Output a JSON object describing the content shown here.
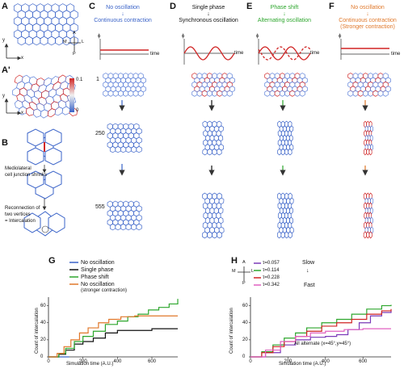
{
  "panels": {
    "a": "A",
    "a2": "A'",
    "b": "B",
    "c": "C",
    "d": "D",
    "e": "E",
    "f": "F",
    "g": "G",
    "h": "H"
  },
  "axes": {
    "a": "A",
    "p": "P",
    "m": "M",
    "l": "L",
    "x": "x",
    "y": "y"
  },
  "a2_scale": {
    "max": "0.1",
    "min": "0"
  },
  "panel_b": {
    "caption1": "Mediolateral",
    "caption2": "cell junction shrinks",
    "caption3": "Reconnection of",
    "caption4": "two vertices",
    "caption5": "= Intercalation"
  },
  "columns": {
    "c": {
      "line1": "No oscillation",
      "line2": "Continuous contraction",
      "color": "#3a63c8"
    },
    "d": {
      "line1": "Single phase",
      "line2": "Synchronous oscillation",
      "color": "#111111"
    },
    "e": {
      "line1": "Phase shift",
      "line2": "Alternating oscillation",
      "color": "#2da62d"
    },
    "f": {
      "line1": "No oscillation",
      "line2": "Continuous contraction",
      "line3": "(Stronger contraction)",
      "color": "#e0782a"
    }
  },
  "signal": {
    "phi": "ϕ",
    "time": "time"
  },
  "rows": {
    "r1": "1",
    "r2": "250",
    "r3": "555"
  },
  "graph_g": {
    "legend": [
      "No oscillation",
      "Single phase",
      "Phase shift",
      "No oscillation",
      "(stronger contraction)"
    ],
    "ylabel": "Count of intercalation",
    "xlabel": "Simulation time (A.U.)",
    "yticks": [
      "0",
      "20",
      "40",
      "60"
    ],
    "xticks": [
      "0",
      "200",
      "400",
      "600"
    ]
  },
  "graph_h": {
    "legend": [
      "τ=0.057",
      "τ=0.114",
      "τ=0.228",
      "τ=0.342"
    ],
    "slow": "Slow",
    "fast": "Fast",
    "note": "All alternate (x=45°,y=45°)",
    "ylabel": "Count of intercalation",
    "xlabel": "Simulation time (A.U.)",
    "yticks": [
      "0",
      "20",
      "40",
      "60"
    ],
    "xticks": [
      "0",
      "200",
      "400",
      "600"
    ]
  },
  "chart_data": [
    {
      "type": "line",
      "xlim": [
        0,
        750
      ],
      "ylim": [
        0,
        70
      ],
      "series": [
        {
          "name": "No oscillation",
          "color": "#3a63c8",
          "points": [
            [
              0,
              0
            ],
            [
              60,
              0
            ],
            [
              120,
              0
            ]
          ]
        },
        {
          "name": "Single phase",
          "color": "#111111",
          "points": [
            [
              0,
              0
            ],
            [
              60,
              3
            ],
            [
              100,
              8
            ],
            [
              150,
              15
            ],
            [
              200,
              18
            ],
            [
              260,
              22
            ],
            [
              330,
              28
            ],
            [
              400,
              31
            ],
            [
              500,
              31
            ],
            [
              600,
              33
            ],
            [
              750,
              33
            ]
          ]
        },
        {
          "name": "Phase shift",
          "color": "#2da62d",
          "points": [
            [
              0,
              0
            ],
            [
              60,
              4
            ],
            [
              100,
              10
            ],
            [
              150,
              18
            ],
            [
              200,
              24
            ],
            [
              260,
              30
            ],
            [
              330,
              38
            ],
            [
              400,
              42
            ],
            [
              460,
              47
            ],
            [
              520,
              50
            ],
            [
              580,
              55
            ],
            [
              640,
              58
            ],
            [
              700,
              62
            ],
            [
              750,
              68
            ]
          ]
        },
        {
          "name": "No oscillation (stronger contraction)",
          "color": "#e0782a",
          "points": [
            [
              0,
              0
            ],
            [
              50,
              4
            ],
            [
              90,
              12
            ],
            [
              130,
              20
            ],
            [
              180,
              28
            ],
            [
              230,
              34
            ],
            [
              290,
              40
            ],
            [
              350,
              44
            ],
            [
              420,
              47
            ],
            [
              500,
              48
            ],
            [
              750,
              48
            ]
          ]
        }
      ]
    },
    {
      "type": "line",
      "xlim": [
        0,
        750
      ],
      "ylim": [
        0,
        70
      ],
      "series": [
        {
          "name": "τ=0.057",
          "color": "#7a3ab8",
          "points": [
            [
              0,
              0
            ],
            [
              80,
              5
            ],
            [
              160,
              14
            ],
            [
              240,
              20
            ],
            [
              320,
              23
            ],
            [
              400,
              24
            ],
            [
              460,
              26
            ],
            [
              520,
              32
            ],
            [
              580,
              40
            ],
            [
              640,
              48
            ],
            [
              700,
              52
            ],
            [
              750,
              54
            ]
          ]
        },
        {
          "name": "τ=0.114",
          "color": "#2da62d",
          "points": [
            [
              0,
              0
            ],
            [
              60,
              6
            ],
            [
              120,
              14
            ],
            [
              180,
              22
            ],
            [
              240,
              28
            ],
            [
              300,
              34
            ],
            [
              380,
              40
            ],
            [
              460,
              44
            ],
            [
              540,
              50
            ],
            [
              620,
              56
            ],
            [
              700,
              60
            ],
            [
              750,
              61
            ]
          ]
        },
        {
          "name": "τ=0.228",
          "color": "#d02424",
          "points": [
            [
              0,
              0
            ],
            [
              60,
              5
            ],
            [
              120,
              12
            ],
            [
              180,
              18
            ],
            [
              240,
              24
            ],
            [
              300,
              30
            ],
            [
              380,
              36
            ],
            [
              460,
              40
            ],
            [
              540,
              44
            ],
            [
              620,
              50
            ],
            [
              700,
              54
            ],
            [
              750,
              56
            ]
          ]
        },
        {
          "name": "τ=0.342",
          "color": "#e060c0",
          "points": [
            [
              0,
              0
            ],
            [
              80,
              8
            ],
            [
              160,
              18
            ],
            [
              240,
              24
            ],
            [
              320,
              28
            ],
            [
              400,
              30
            ],
            [
              500,
              32
            ],
            [
              600,
              33
            ],
            [
              750,
              33
            ]
          ]
        }
      ]
    }
  ]
}
